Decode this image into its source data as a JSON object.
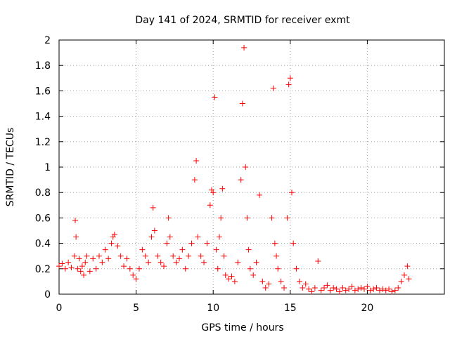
{
  "chart_data": {
    "type": "scatter",
    "title": "Day 141 of 2024, SRMTID for receiver exmt",
    "xlabel": "GPS time / hours",
    "ylabel": "SRMTID / TECUs",
    "xlim": [
      0,
      25
    ],
    "ylim": [
      0,
      2
    ],
    "xticks": [
      0,
      5,
      10,
      15,
      20
    ],
    "yticks": [
      0,
      0.2,
      0.4,
      0.6,
      0.8,
      1,
      1.2,
      1.4,
      1.6,
      1.8,
      2
    ],
    "grid": true,
    "marker": "+",
    "series_color": "#ff0000",
    "series": [
      {
        "name": "SRMTID",
        "x": [
          0.0,
          0.2,
          0.4,
          0.6,
          0.8,
          1.0,
          1.05,
          1.1,
          1.2,
          1.3,
          1.4,
          1.5,
          1.6,
          1.7,
          1.8,
          2.0,
          2.2,
          2.4,
          2.6,
          2.8,
          3.0,
          3.2,
          3.4,
          3.5,
          3.6,
          3.8,
          4.0,
          4.2,
          4.4,
          4.6,
          4.8,
          5.0,
          5.2,
          5.4,
          5.6,
          5.8,
          6.0,
          6.1,
          6.2,
          6.4,
          6.6,
          6.8,
          7.0,
          7.1,
          7.2,
          7.4,
          7.6,
          7.8,
          8.0,
          8.2,
          8.4,
          8.6,
          8.8,
          8.9,
          9.0,
          9.2,
          9.4,
          9.6,
          9.8,
          9.9,
          10.0,
          10.1,
          10.2,
          10.3,
          10.4,
          10.5,
          10.6,
          10.7,
          10.8,
          11.0,
          11.2,
          11.4,
          11.6,
          11.8,
          11.9,
          12.0,
          12.1,
          12.2,
          12.3,
          12.4,
          12.6,
          12.8,
          13.0,
          13.2,
          13.4,
          13.6,
          13.8,
          13.9,
          14.0,
          14.1,
          14.2,
          14.4,
          14.6,
          14.8,
          14.9,
          15.0,
          15.1,
          15.2,
          15.4,
          15.6,
          15.8,
          16.0,
          16.2,
          16.4,
          16.6,
          16.8,
          17.0,
          17.2,
          17.4,
          17.6,
          17.8,
          18.0,
          18.2,
          18.4,
          18.6,
          18.8,
          19.0,
          19.2,
          19.4,
          19.6,
          19.8,
          20.0,
          20.2,
          20.4,
          20.6,
          20.8,
          21.0,
          21.2,
          21.4,
          21.6,
          21.8,
          22.0,
          22.2,
          22.4,
          22.6,
          22.7
        ],
        "y": [
          0.22,
          0.24,
          0.2,
          0.25,
          0.21,
          0.3,
          0.58,
          0.45,
          0.2,
          0.28,
          0.18,
          0.22,
          0.15,
          0.25,
          0.3,
          0.18,
          0.28,
          0.2,
          0.3,
          0.25,
          0.35,
          0.28,
          0.4,
          0.45,
          0.47,
          0.38,
          0.3,
          0.22,
          0.28,
          0.2,
          0.15,
          0.12,
          0.2,
          0.35,
          0.3,
          0.25,
          0.45,
          0.68,
          0.5,
          0.3,
          0.25,
          0.22,
          0.4,
          0.6,
          0.45,
          0.3,
          0.25,
          0.28,
          0.35,
          0.2,
          0.3,
          0.4,
          0.9,
          1.05,
          0.45,
          0.3,
          0.25,
          0.4,
          0.7,
          0.82,
          0.8,
          1.55,
          0.35,
          0.2,
          0.45,
          0.6,
          0.83,
          0.3,
          0.15,
          0.12,
          0.14,
          0.1,
          0.25,
          0.9,
          1.5,
          1.94,
          1.0,
          0.6,
          0.35,
          0.2,
          0.15,
          0.25,
          0.78,
          0.1,
          0.05,
          0.08,
          0.6,
          1.62,
          0.4,
          0.3,
          0.2,
          0.1,
          0.05,
          0.6,
          1.65,
          1.7,
          0.8,
          0.4,
          0.2,
          0.1,
          0.05,
          0.08,
          0.04,
          0.02,
          0.05,
          0.26,
          0.03,
          0.05,
          0.07,
          0.03,
          0.05,
          0.04,
          0.02,
          0.05,
          0.03,
          0.04,
          0.06,
          0.03,
          0.04,
          0.05,
          0.04,
          0.06,
          0.03,
          0.04,
          0.05,
          0.03,
          0.04,
          0.03,
          0.04,
          0.02,
          0.03,
          0.05,
          0.1,
          0.15,
          0.22,
          0.12
        ]
      }
    ]
  }
}
